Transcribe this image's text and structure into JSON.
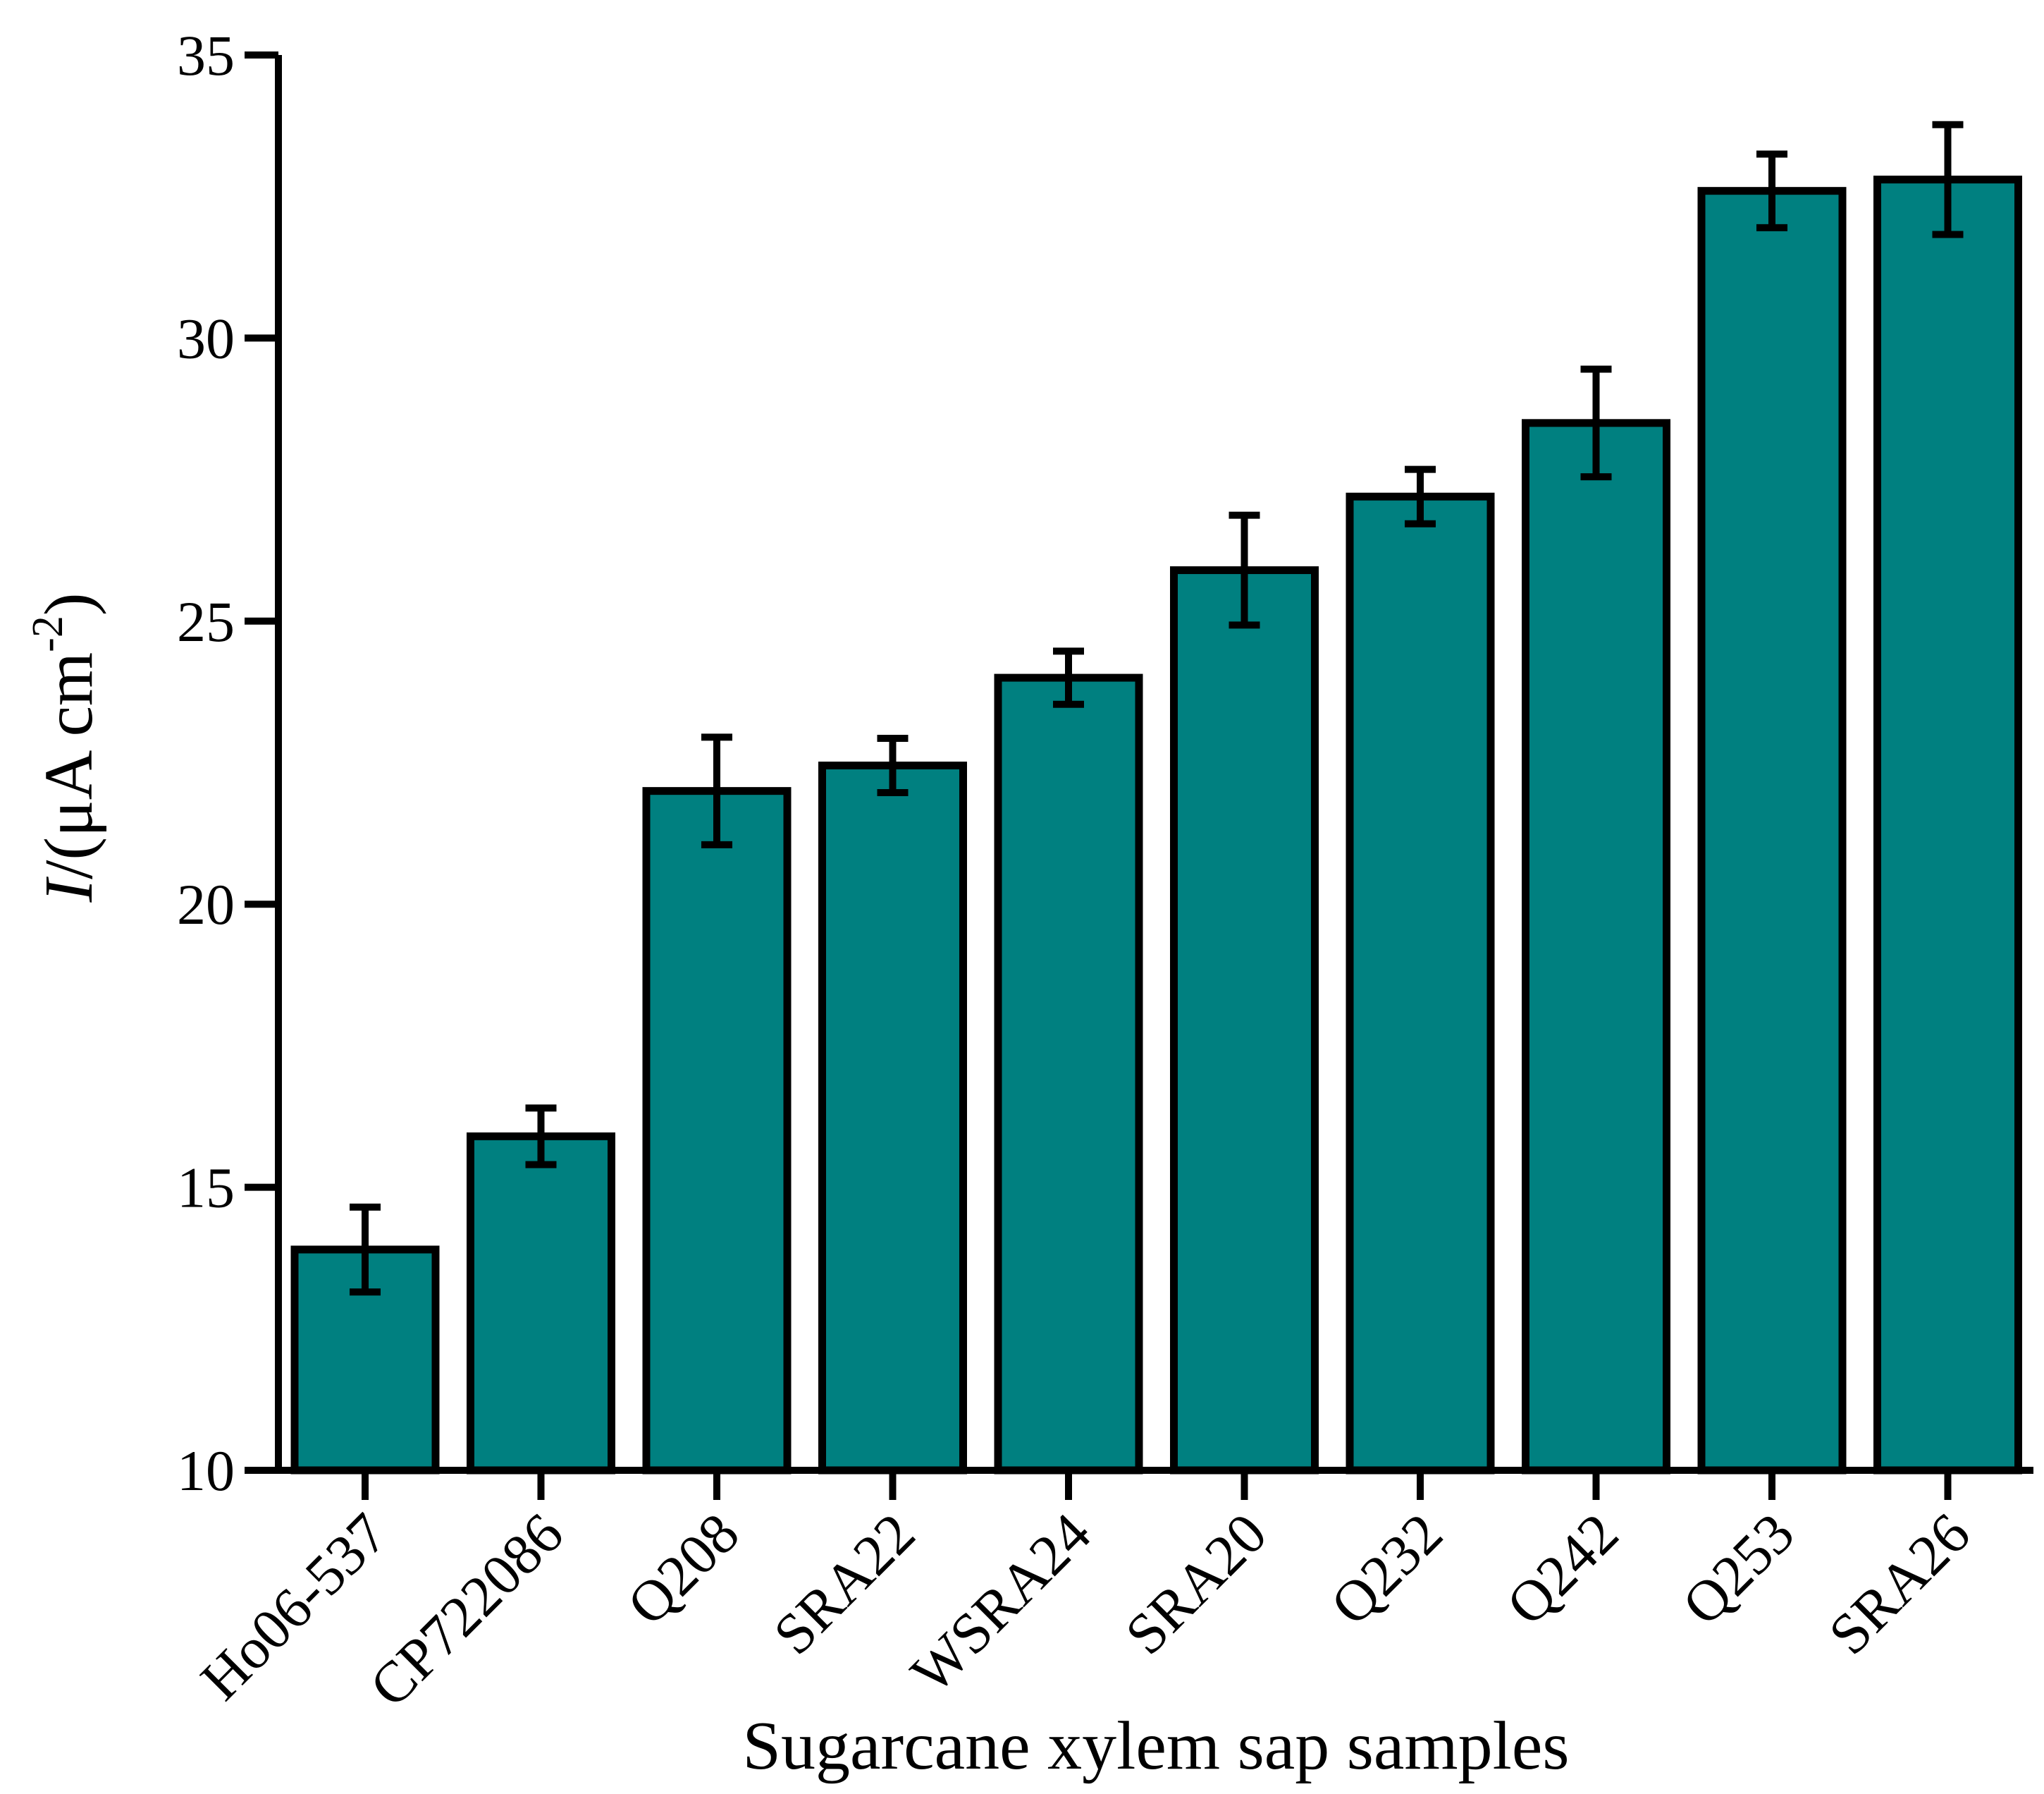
{
  "chart_data": {
    "type": "bar",
    "title": "",
    "xlabel": "Sugarcane xylem sap samples",
    "ylabel": {
      "italic": "I",
      "main": "/(μA cm",
      "superscript": "-2",
      "close": ")"
    },
    "ylim": [
      10,
      35
    ],
    "yticks": [
      10,
      15,
      20,
      25,
      30,
      35
    ],
    "grid": false,
    "categories": [
      "Ho06-537",
      "CP722086",
      "Q208",
      "SRA22",
      "WSRA24",
      "SRA20",
      "Q232",
      "Q242",
      "Q253",
      "SRA26"
    ],
    "series": [
      {
        "name": "I",
        "values": [
          13.9,
          15.9,
          22.0,
          22.45,
          24.0,
          25.9,
          27.2,
          28.5,
          32.6,
          32.8
        ],
        "errors": [
          0.75,
          0.5,
          0.95,
          0.48,
          0.47,
          0.97,
          0.48,
          0.95,
          0.65,
          0.97
        ]
      }
    ],
    "colors": {
      "bar_fill": "#008080",
      "bar_edge": "#000000",
      "axis": "#000000"
    }
  }
}
